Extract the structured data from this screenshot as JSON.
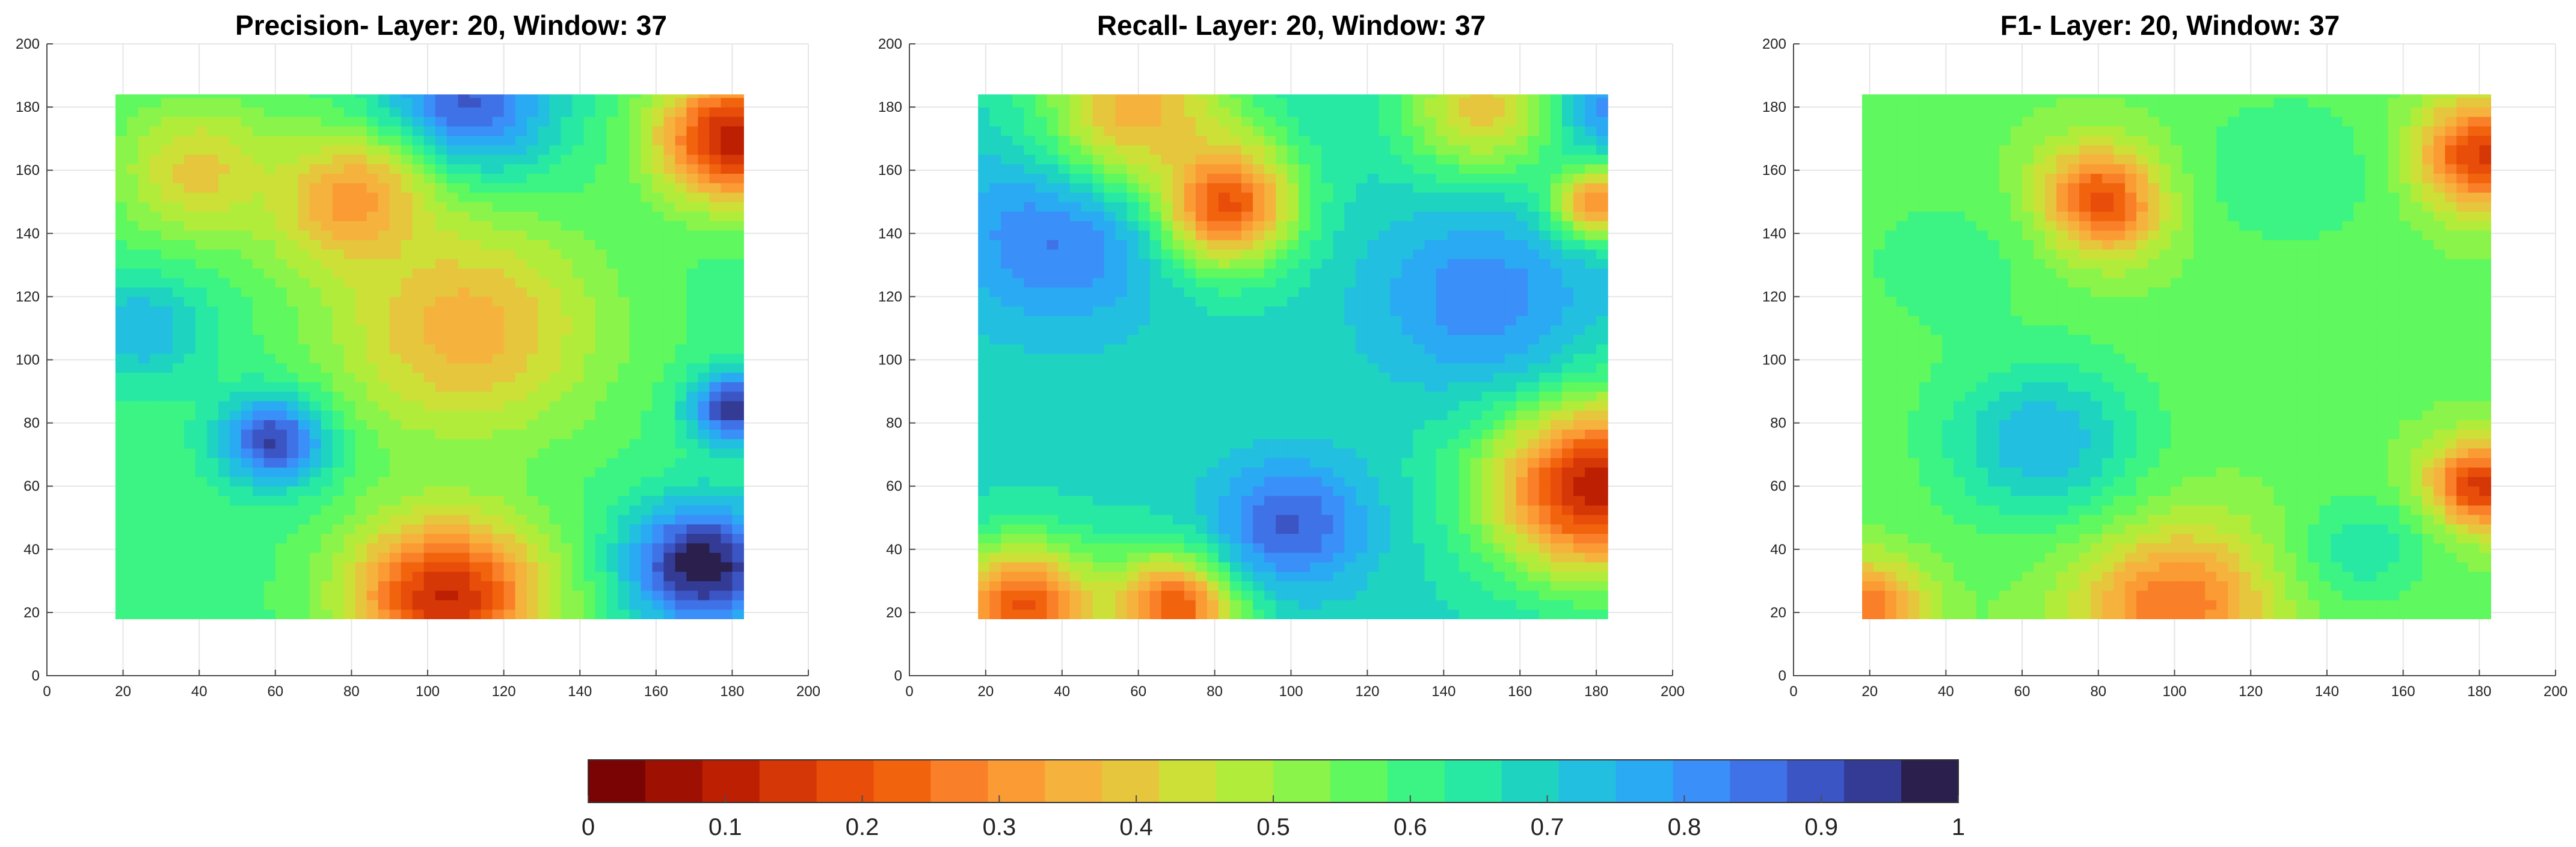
{
  "chart_data": [
    {
      "type": "heatmap",
      "title": "Precision- Layer: 20, Window: 37",
      "xlim": [
        0,
        200
      ],
      "ylim": [
        0,
        200
      ],
      "xticks": [
        "0",
        "20",
        "40",
        "60",
        "80",
        "100",
        "120",
        "140",
        "160",
        "180",
        "200"
      ],
      "yticks": [
        "0",
        "20",
        "40",
        "60",
        "80",
        "100",
        "120",
        "140",
        "160",
        "180",
        "200"
      ],
      "data_extent": {
        "x": [
          18,
          183
        ],
        "y": [
          18,
          184
        ]
      },
      "grid": true,
      "colorscale": "jet-reversed (0 = dark red, 1 = dark purple)",
      "base_value": 0.6,
      "features": [
        {
          "x": 60,
          "y": 75,
          "value": 0.95,
          "sigma": 10
        },
        {
          "x": 172,
          "y": 35,
          "value": 1.0,
          "sigma": 14
        },
        {
          "x": 180,
          "y": 85,
          "value": 0.95,
          "sigma": 8
        },
        {
          "x": 105,
          "y": 25,
          "value": 0.12,
          "sigma": 18
        },
        {
          "x": 180,
          "y": 170,
          "value": 0.1,
          "sigma": 14
        },
        {
          "x": 110,
          "y": 180,
          "value": 0.9,
          "sigma": 16
        },
        {
          "x": 80,
          "y": 150,
          "value": 0.3,
          "sigma": 15
        },
        {
          "x": 110,
          "y": 110,
          "value": 0.35,
          "sigma": 25
        },
        {
          "x": 25,
          "y": 110,
          "value": 0.75,
          "sigma": 12
        },
        {
          "x": 40,
          "y": 160,
          "value": 0.4,
          "sigma": 15
        }
      ]
    },
    {
      "type": "heatmap",
      "title": "Recall- Layer: 20, Window: 37",
      "xlim": [
        0,
        200
      ],
      "ylim": [
        0,
        200
      ],
      "xticks": [
        "0",
        "20",
        "40",
        "60",
        "80",
        "100",
        "120",
        "140",
        "160",
        "180",
        "200"
      ],
      "yticks": [
        "0",
        "20",
        "40",
        "60",
        "80",
        "100",
        "120",
        "140",
        "160",
        "180",
        "200"
      ],
      "data_extent": {
        "x": [
          18,
          183
        ],
        "y": [
          18,
          184
        ]
      },
      "grid": true,
      "colorscale": "jet-reversed (0 = dark red, 1 = dark purple)",
      "base_value": 0.68,
      "features": [
        {
          "x": 80,
          "y": 150,
          "value": 0.1,
          "sigma": 14
        },
        {
          "x": 180,
          "y": 60,
          "value": 0.1,
          "sigma": 20
        },
        {
          "x": 30,
          "y": 22,
          "value": 0.2,
          "sigma": 14
        },
        {
          "x": 70,
          "y": 22,
          "value": 0.2,
          "sigma": 12
        },
        {
          "x": 100,
          "y": 48,
          "value": 0.88,
          "sigma": 14
        },
        {
          "x": 40,
          "y": 140,
          "value": 0.85,
          "sigma": 20
        },
        {
          "x": 150,
          "y": 120,
          "value": 0.82,
          "sigma": 20
        },
        {
          "x": 180,
          "y": 180,
          "value": 0.85,
          "sigma": 10
        },
        {
          "x": 150,
          "y": 180,
          "value": 0.4,
          "sigma": 15
        },
        {
          "x": 180,
          "y": 150,
          "value": 0.3,
          "sigma": 8
        },
        {
          "x": 60,
          "y": 180,
          "value": 0.35,
          "sigma": 18
        }
      ]
    },
    {
      "type": "heatmap",
      "title": "F1- Layer: 20, Window: 37",
      "xlim": [
        0,
        200
      ],
      "ylim": [
        0,
        200
      ],
      "xticks": [
        "0",
        "20",
        "40",
        "60",
        "80",
        "100",
        "120",
        "140",
        "160",
        "180",
        "200"
      ],
      "yticks": [
        "0",
        "20",
        "40",
        "60",
        "80",
        "100",
        "120",
        "140",
        "160",
        "180",
        "200"
      ],
      "data_extent": {
        "x": [
          18,
          183
        ],
        "y": [
          18,
          184
        ]
      },
      "grid": true,
      "colorscale": "jet-reversed (0 = dark red, 1 = dark purple)",
      "base_value": 0.55,
      "features": [
        {
          "x": 80,
          "y": 150,
          "value": 0.15,
          "sigma": 12
        },
        {
          "x": 180,
          "y": 165,
          "value": 0.15,
          "sigma": 12
        },
        {
          "x": 180,
          "y": 60,
          "value": 0.15,
          "sigma": 10
        },
        {
          "x": 100,
          "y": 22,
          "value": 0.25,
          "sigma": 18
        },
        {
          "x": 20,
          "y": 22,
          "value": 0.25,
          "sigma": 10
        },
        {
          "x": 65,
          "y": 75,
          "value": 0.75,
          "sigma": 18
        },
        {
          "x": 130,
          "y": 160,
          "value": 0.62,
          "sigma": 18
        },
        {
          "x": 150,
          "y": 40,
          "value": 0.65,
          "sigma": 12
        },
        {
          "x": 40,
          "y": 130,
          "value": 0.6,
          "sigma": 20
        }
      ]
    }
  ],
  "colorbar": {
    "range": [
      0,
      1
    ],
    "levels": 24,
    "ticks": [
      "0",
      "0.1",
      "0.2",
      "0.3",
      "0.4",
      "0.5",
      "0.6",
      "0.7",
      "0.8",
      "0.9",
      "1"
    ],
    "colors": [
      "#7a0403",
      "#9e1002",
      "#bc1f02",
      "#d63706",
      "#e84d0a",
      "#f2630e",
      "#f98028",
      "#fb9b33",
      "#f5b33e",
      "#e5c63c",
      "#cde038",
      "#b1ec3b",
      "#8bf44a",
      "#5ff85e",
      "#3cf483",
      "#27e9a3",
      "#1ed4c0",
      "#22bfe0",
      "#2aaaf3",
      "#3a8ff8",
      "#3f72e6",
      "#3c55c4",
      "#333b95",
      "#2a1f4d"
    ]
  }
}
